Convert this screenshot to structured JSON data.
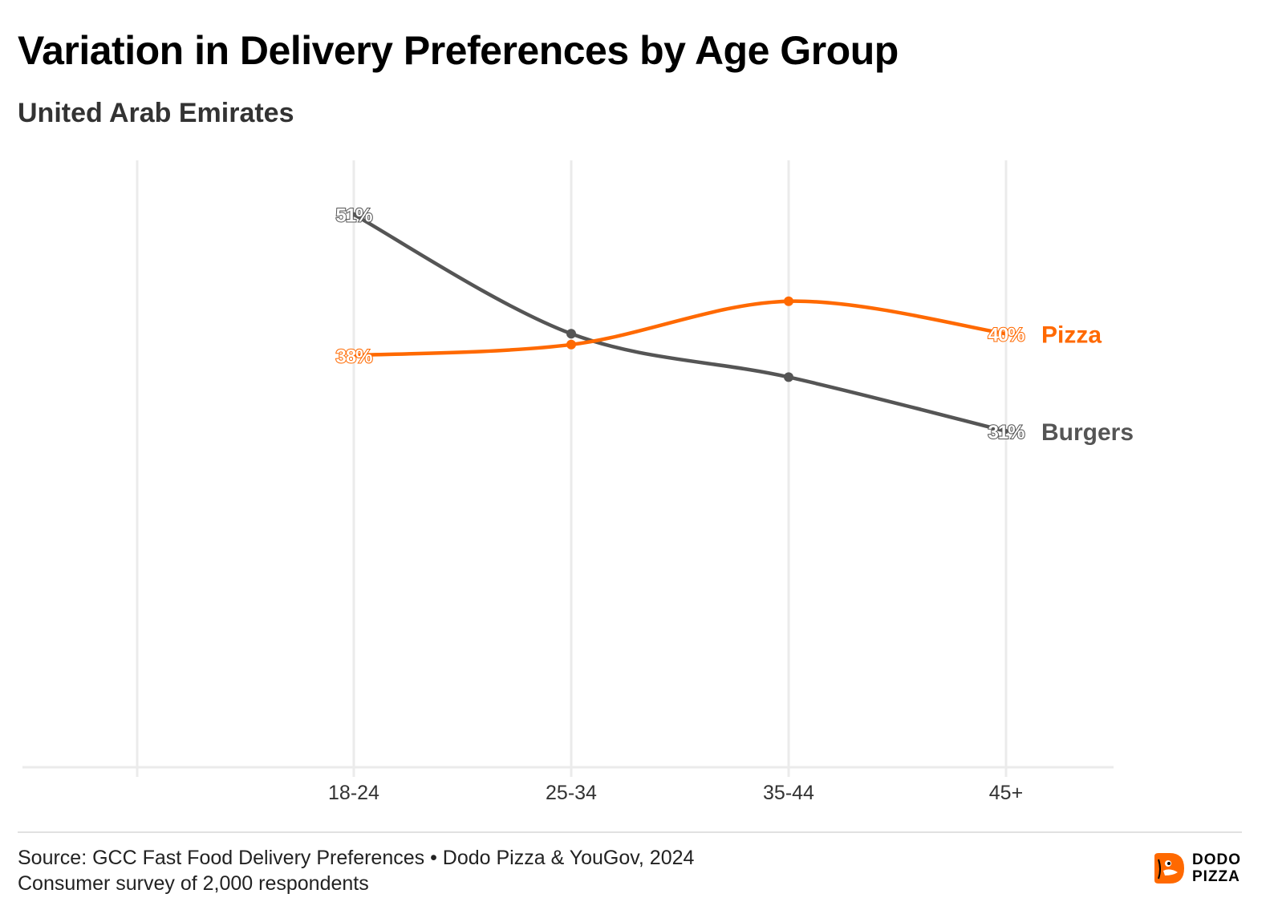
{
  "header": {
    "title": "Variation in Delivery Preferences by Age Group",
    "subtitle": "United Arab Emirates"
  },
  "chart_data": {
    "type": "line",
    "title": "Variation in Delivery Preferences by Age Group",
    "subtitle": "United Arab Emirates",
    "categories": [
      "18-24",
      "25-34",
      "35-44",
      "45+"
    ],
    "series": [
      {
        "name": "Burgers",
        "values": [
          51,
          40,
          36,
          31
        ],
        "color": "#555555",
        "labels": [
          "51%",
          null,
          null,
          "31%"
        ]
      },
      {
        "name": "Pizza",
        "values": [
          38,
          39,
          43,
          40
        ],
        "color": "#ff6900",
        "labels": [
          "38%",
          null,
          null,
          "40%"
        ]
      }
    ],
    "ylim": [
      0,
      56
    ],
    "grid": "vertical",
    "legend": "direct labels at line ends",
    "xlabel": "",
    "ylabel": ""
  },
  "footer": {
    "source_line1": "Source: GCC Fast Food Delivery Preferences • Dodo Pizza & YouGov, 2024",
    "source_line2": "Consumer survey of 2,000 respondents",
    "logo_line1": "DODO",
    "logo_line2": "PIZZA"
  },
  "colors": {
    "pizza": "#ff6900",
    "burgers": "#555555",
    "grid": "#ebebeb"
  }
}
